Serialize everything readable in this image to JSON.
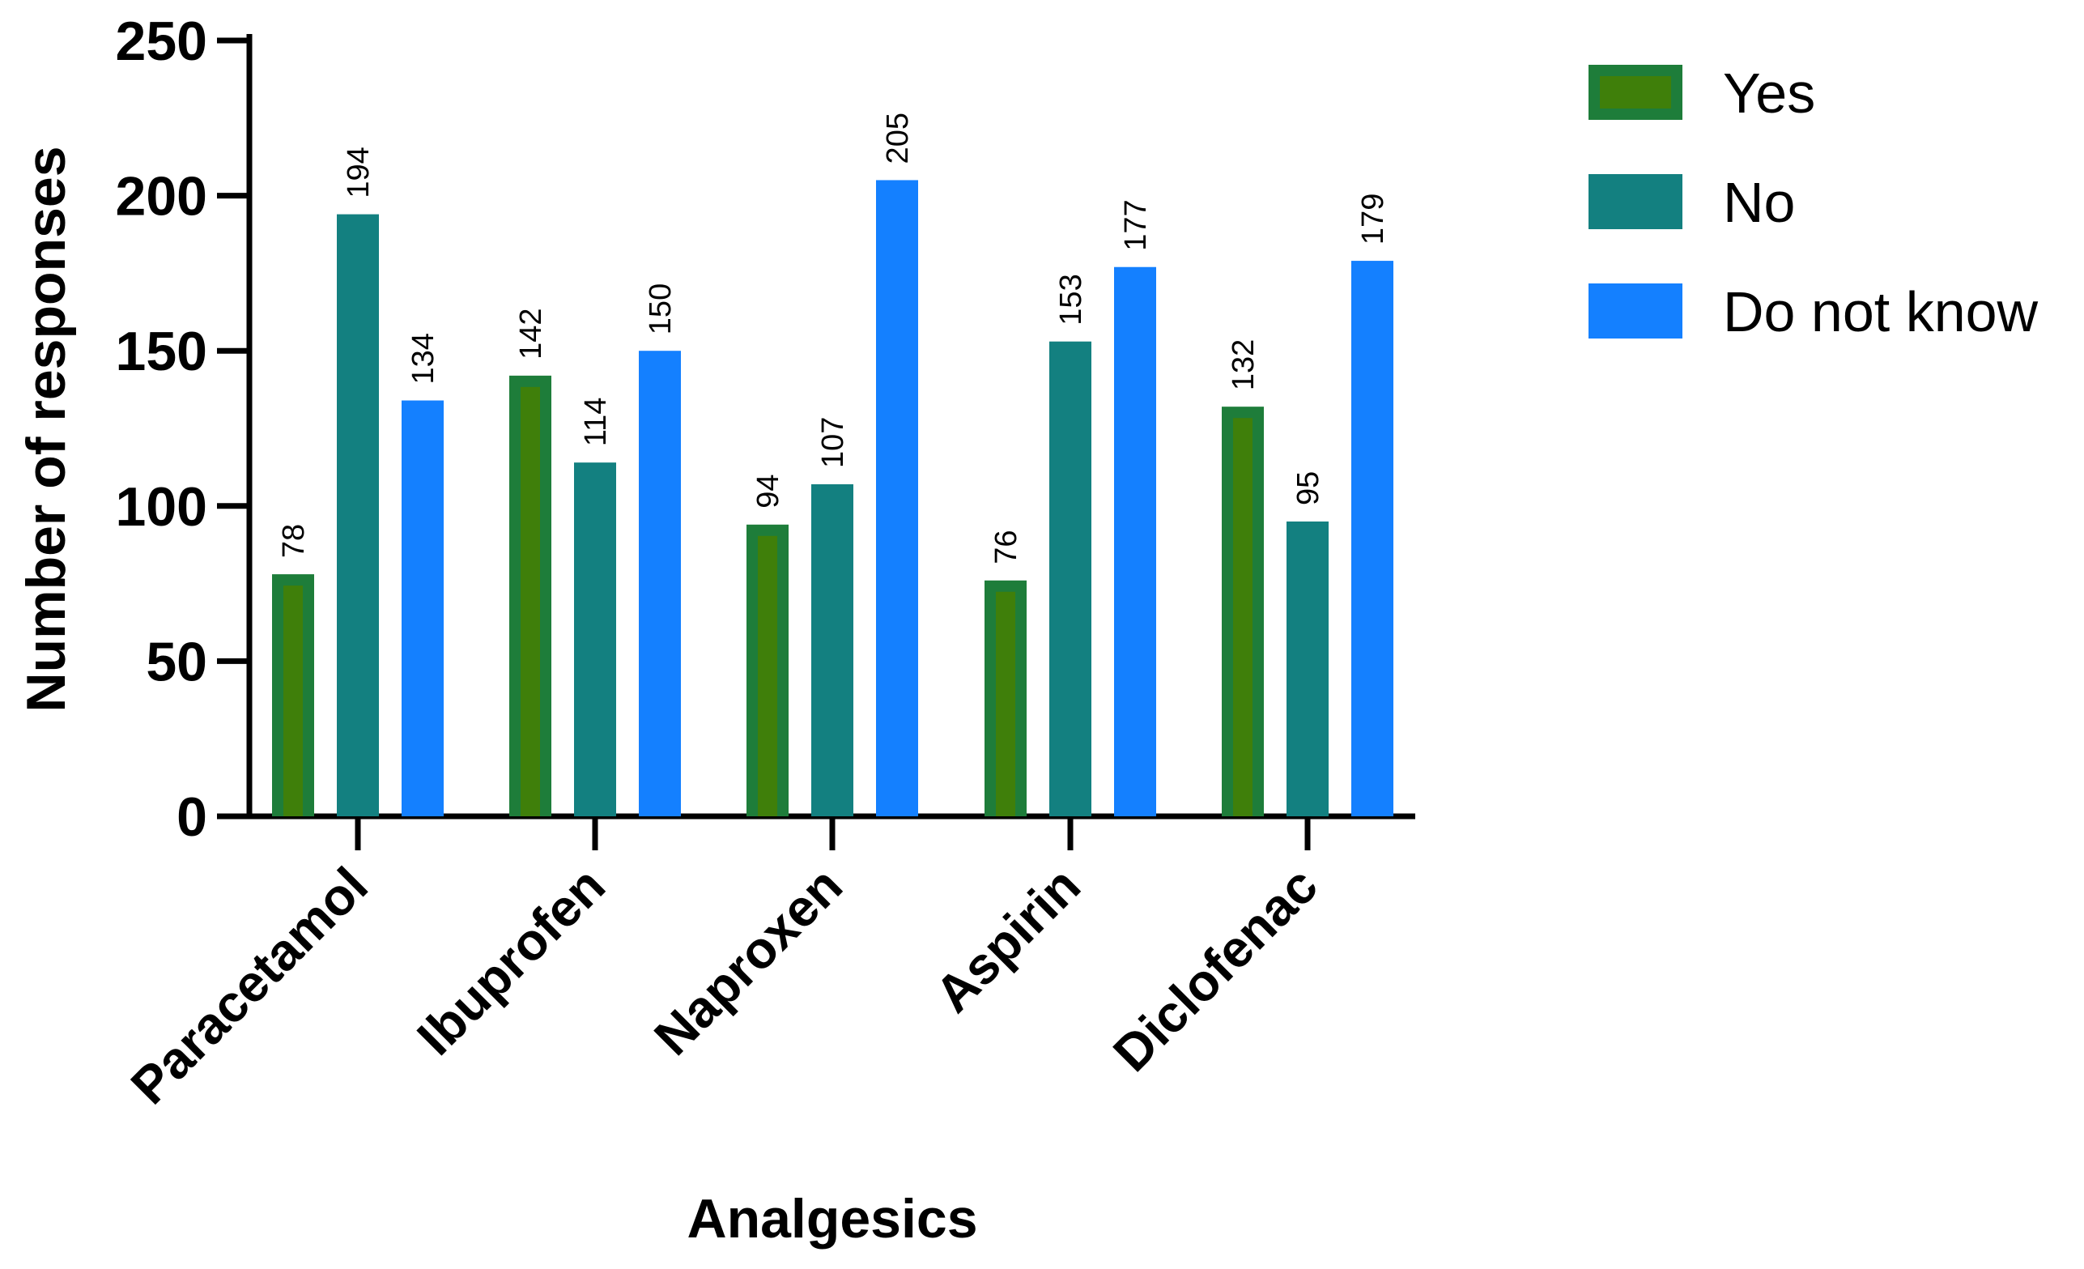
{
  "chart_data": {
    "type": "bar",
    "title": "",
    "xlabel": "Analgesics",
    "ylabel": "Number of responses",
    "ylim": [
      0,
      250
    ],
    "yticks": [
      0,
      50,
      100,
      150,
      200,
      250
    ],
    "categories": [
      "Paracetamol",
      "Ibuprofen",
      "Naproxen",
      "Aspirin",
      "Diclofenac"
    ],
    "series": [
      {
        "name": "Yes",
        "values": [
          78,
          142,
          94,
          76,
          132
        ],
        "color": "#1e7d3a",
        "inner_color": "#3f7f0a"
      },
      {
        "name": "No",
        "values": [
          194,
          114,
          107,
          153,
          95
        ],
        "color": "#138080"
      },
      {
        "name": "Do not know",
        "values": [
          134,
          150,
          205,
          177,
          179
        ],
        "color": "#1480ff"
      }
    ],
    "legend_position": "top-right",
    "grid": false
  }
}
